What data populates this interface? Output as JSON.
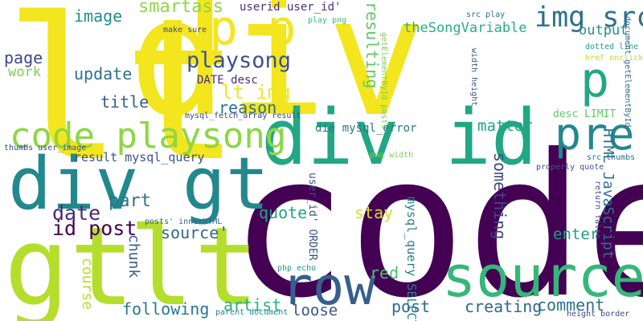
{
  "words": [
    {
      "text": "code",
      "color": "#440154"
    },
    {
      "text": "lt",
      "color": "#f3e51e"
    },
    {
      "text": "div",
      "color": "#f3e51e"
    },
    {
      "text": "gt",
      "color": "#b4de2c"
    },
    {
      "text": "lt",
      "color": "#b4de2c"
    },
    {
      "text": "div gt",
      "color": "#23888e"
    },
    {
      "text": "div id",
      "color": "#22a784"
    },
    {
      "text": "row",
      "color": "#355f8d"
    },
    {
      "text": "source",
      "color": "#35b779"
    },
    {
      "text": "code playsong",
      "color": "#8ed645"
    },
    {
      "text": "pre",
      "color": "#23888e"
    },
    {
      "text": "p p",
      "color": "#f3e51e"
    },
    {
      "text": "p",
      "color": "#22a784"
    },
    {
      "text": "img src",
      "color": "#2c718e"
    },
    {
      "text": "playsong",
      "color": "#3b528b"
    },
    {
      "text": "lt img",
      "color": "#f3e51e"
    },
    {
      "text": "reason",
      "color": "#2c728e"
    },
    {
      "text": "id post",
      "color": "#440154"
    },
    {
      "text": "date",
      "color": "#482878"
    },
    {
      "text": "part",
      "color": "#2c728e"
    },
    {
      "text": "source'",
      "color": "#31688e"
    },
    {
      "text": "quote",
      "color": "#22a784"
    },
    {
      "text": "stay",
      "color": "#d8e219"
    },
    {
      "text": "smartass",
      "color": "#8fd744"
    },
    {
      "text": "image",
      "color": "#218f8d"
    },
    {
      "text": "page",
      "color": "#3e4989"
    },
    {
      "text": "work",
      "color": "#7ad151"
    },
    {
      "text": "update",
      "color": "#2d708e"
    },
    {
      "text": "title",
      "color": "#355f8d"
    },
    {
      "text": "userid user_id'",
      "color": "#46337e"
    },
    {
      "text": "theSongVariable",
      "color": "#29af7f"
    },
    {
      "text": "output",
      "color": "#21918c"
    },
    {
      "text": "matter",
      "color": "#21a585"
    },
    {
      "text": "resulting",
      "color": "#5ec962"
    },
    {
      "text": "something",
      "color": "#3f4788"
    },
    {
      "text": "DATE desc",
      "color": "#472c7a"
    },
    {
      "text": "mysql_fetch_array result",
      "color": "#414487"
    },
    {
      "text": "die mysql_error",
      "color": "#2a788e"
    },
    {
      "text": "result mysql_query",
      "color": "#3b528b"
    },
    {
      "text": "desc LIMIT",
      "color": "#5ec962"
    },
    {
      "text": "HTML JavaScript",
      "color": "#2c728e"
    },
    {
      "text": "enter",
      "color": "#1f9e89"
    },
    {
      "text": "comment",
      "color": "#2c728e"
    },
    {
      "text": "creating",
      "color": "#31688e"
    },
    {
      "text": "post",
      "color": "#31688e"
    },
    {
      "text": "red",
      "color": "#4ac16d"
    },
    {
      "text": "artist",
      "color": "#2ab07f"
    },
    {
      "text": "chunk",
      "color": "#375b8d"
    },
    {
      "text": "course",
      "color": "#b5de2b"
    },
    {
      "text": "following",
      "color": "#2a788e"
    },
    {
      "text": "loose",
      "color": "#3b528b"
    },
    {
      "text": "mysql_query SELECT",
      "color": "#25838e"
    },
    {
      "text": "user_id' ORDER",
      "color": "#3b528b"
    },
    {
      "text": "make sure",
      "color": "#3e4989"
    },
    {
      "text": "play png",
      "color": "#35b779"
    },
    {
      "text": "src play",
      "color": "#2c728e"
    },
    {
      "text": "getElementById posts'",
      "color": "#7ad151"
    },
    {
      "text": "dotted line",
      "color": "#1f9e89"
    },
    {
      "text": "href onclick",
      "color": "#bddf26"
    },
    {
      "text": "width height",
      "color": "#3b528b"
    },
    {
      "text": "thumbs user_image",
      "color": "#3e4989"
    },
    {
      "text": "png width",
      "color": "#7ad151"
    },
    {
      "text": "posts' innerHTML",
      "color": "#31688e"
    },
    {
      "text": "properly quote",
      "color": "#3b528b"
    },
    {
      "text": "src thumbs",
      "color": "#2c728e"
    },
    {
      "text": "return false",
      "color": "#3e4989"
    },
    {
      "text": "document getElementById",
      "color": "#31688e"
    },
    {
      "text": "php echo",
      "color": "#21908d"
    },
    {
      "text": "parent document",
      "color": "#26828e"
    },
    {
      "text": "height border",
      "color": "#3e4989"
    }
  ]
}
